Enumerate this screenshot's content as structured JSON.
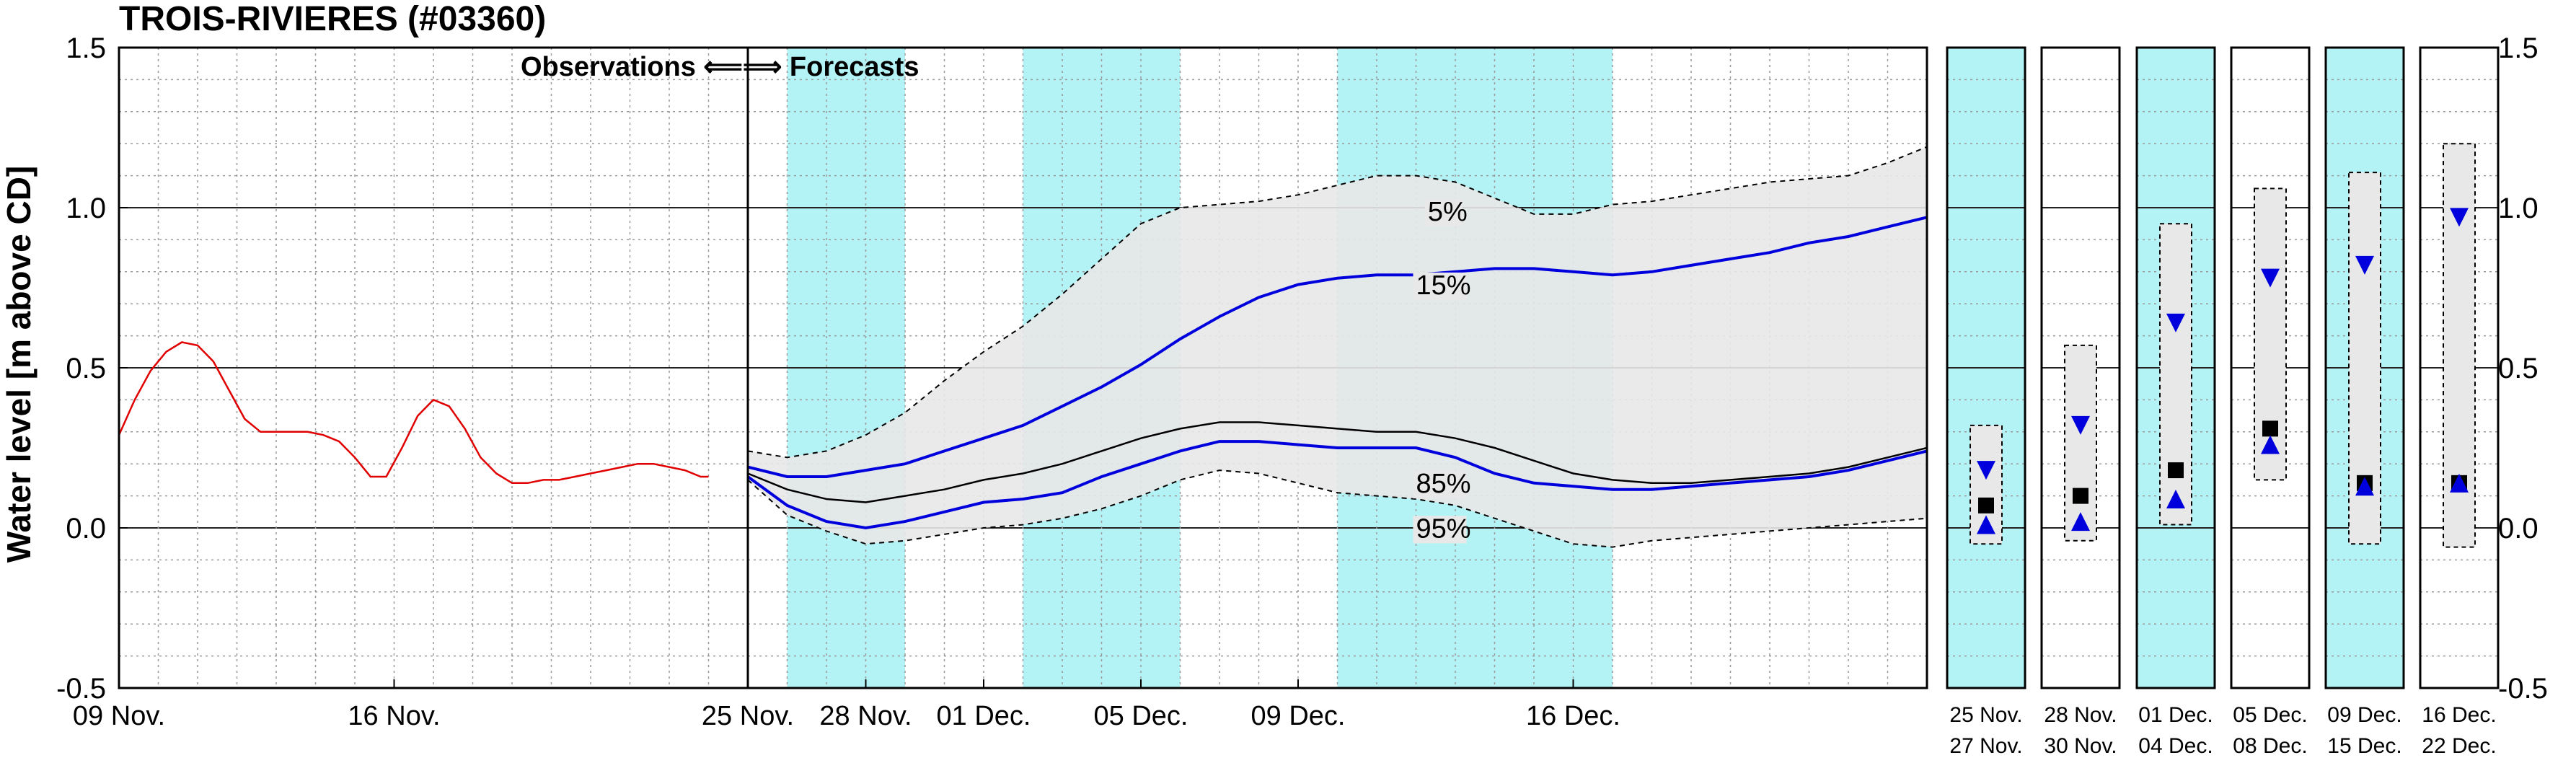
{
  "chart_data": {
    "type": "line",
    "title": "TROIS-RIVIERES (#03360)",
    "ylabel": "Water level [m above CD]",
    "ylim": [
      -0.5,
      1.5
    ],
    "yticks": [
      "-0.5",
      "0.0",
      "0.5",
      "1.0",
      "1.5"
    ],
    "yticks_right": [
      "-0.5",
      "0.0",
      "0.5",
      "1.0",
      "1.5"
    ],
    "x_range_day": [
      0,
      46
    ],
    "x_ticks": [
      {
        "day": 0,
        "label": "09 Nov."
      },
      {
        "day": 7,
        "label": "16 Nov."
      },
      {
        "day": 16,
        "label": "25 Nov."
      },
      {
        "day": 19,
        "label": "28 Nov."
      },
      {
        "day": 22,
        "label": "01 Dec."
      },
      {
        "day": 26,
        "label": "05 Dec."
      },
      {
        "day": 30,
        "label": "09 Dec."
      },
      {
        "day": 37,
        "label": "16 Dec."
      }
    ],
    "observation_forecast_split_day": 16,
    "divider_text": "Observations ⟸⟹ Forecasts",
    "shaded_periods": [
      [
        17,
        20
      ],
      [
        23,
        27
      ],
      [
        31,
        38
      ]
    ],
    "band_label_5": "5%",
    "band_label_15": "15%",
    "band_label_85": "85%",
    "band_label_95": "95%",
    "series_observed": {
      "color": "#e00000",
      "x": [
        0.0,
        0.4,
        0.8,
        1.2,
        1.6,
        2.0,
        2.4,
        2.8,
        3.2,
        3.6,
        4.0,
        4.4,
        4.8,
        5.2,
        5.6,
        6.0,
        6.4,
        6.8,
        7.2,
        7.6,
        8.0,
        8.4,
        8.8,
        9.2,
        9.6,
        10.0,
        10.4,
        10.8,
        11.2,
        11.6,
        12.0,
        12.4,
        12.8,
        13.2,
        13.6,
        14.0,
        14.4,
        14.8,
        15.0
      ],
      "y": [
        0.29,
        0.4,
        0.49,
        0.55,
        0.58,
        0.57,
        0.52,
        0.43,
        0.34,
        0.3,
        0.3,
        0.3,
        0.3,
        0.29,
        0.27,
        0.22,
        0.16,
        0.16,
        0.25,
        0.35,
        0.4,
        0.38,
        0.31,
        0.22,
        0.17,
        0.14,
        0.14,
        0.15,
        0.15,
        0.16,
        0.17,
        0.18,
        0.19,
        0.2,
        0.2,
        0.19,
        0.18,
        0.16,
        0.16
      ]
    },
    "series_forecast_x": [
      16,
      17,
      18,
      19,
      20,
      21,
      22,
      23,
      24,
      25,
      26,
      27,
      28,
      29,
      30,
      31,
      32,
      33,
      34,
      35,
      36,
      37,
      38,
      39,
      40,
      41,
      42,
      43,
      44,
      45,
      46
    ],
    "series_p5": [
      0.24,
      0.22,
      0.24,
      0.29,
      0.36,
      0.46,
      0.55,
      0.63,
      0.73,
      0.84,
      0.95,
      1.0,
      1.01,
      1.02,
      1.04,
      1.07,
      1.1,
      1.1,
      1.08,
      1.03,
      0.98,
      0.98,
      1.01,
      1.02,
      1.04,
      1.06,
      1.08,
      1.09,
      1.1,
      1.14,
      1.19
    ],
    "series_p15": [
      0.19,
      0.16,
      0.16,
      0.18,
      0.2,
      0.24,
      0.28,
      0.32,
      0.38,
      0.44,
      0.51,
      0.59,
      0.66,
      0.72,
      0.76,
      0.78,
      0.79,
      0.79,
      0.8,
      0.81,
      0.81,
      0.8,
      0.79,
      0.8,
      0.82,
      0.84,
      0.86,
      0.89,
      0.91,
      0.94,
      0.97
    ],
    "series_median": [
      0.17,
      0.12,
      0.09,
      0.08,
      0.1,
      0.12,
      0.15,
      0.17,
      0.2,
      0.24,
      0.28,
      0.31,
      0.33,
      0.33,
      0.32,
      0.31,
      0.3,
      0.3,
      0.28,
      0.25,
      0.21,
      0.17,
      0.15,
      0.14,
      0.14,
      0.15,
      0.16,
      0.17,
      0.19,
      0.22,
      0.25
    ],
    "series_p85": [
      0.16,
      0.07,
      0.02,
      0.0,
      0.02,
      0.05,
      0.08,
      0.09,
      0.11,
      0.16,
      0.2,
      0.24,
      0.27,
      0.27,
      0.26,
      0.25,
      0.25,
      0.25,
      0.22,
      0.17,
      0.14,
      0.13,
      0.12,
      0.12,
      0.13,
      0.14,
      0.15,
      0.16,
      0.18,
      0.21,
      0.24
    ],
    "series_p95": [
      0.15,
      0.04,
      -0.01,
      -0.05,
      -0.04,
      -0.02,
      0.0,
      0.01,
      0.03,
      0.06,
      0.1,
      0.15,
      0.18,
      0.17,
      0.14,
      0.11,
      0.1,
      0.09,
      0.07,
      0.03,
      -0.01,
      -0.05,
      -0.06,
      -0.04,
      -0.03,
      -0.02,
      -0.01,
      0.0,
      0.01,
      0.02,
      0.03
    ],
    "colors": {
      "observed": "#e00000",
      "forecast_percentile": "#0000dd",
      "median": "#000000",
      "band_fill": "#e8e8e8",
      "shade": "#b3f3f6",
      "grid": "#999999"
    },
    "panels": [
      {
        "label_top": "25 Nov.",
        "label_bottom": "27 Nov.",
        "shaded": true,
        "box": [
          -0.05,
          0.32
        ],
        "down_triangle": 0.18,
        "square": 0.07,
        "up_triangle": 0.01
      },
      {
        "label_top": "28 Nov.",
        "label_bottom": "30 Nov.",
        "shaded": false,
        "box": [
          -0.04,
          0.57
        ],
        "down_triangle": 0.32,
        "square": 0.1,
        "up_triangle": 0.02
      },
      {
        "label_top": "01 Dec.",
        "label_bottom": "04 Dec.",
        "shaded": true,
        "box": [
          0.01,
          0.95
        ],
        "down_triangle": 0.64,
        "square": 0.18,
        "up_triangle": 0.09
      },
      {
        "label_top": "05 Dec.",
        "label_bottom": "08 Dec.",
        "shaded": false,
        "box": [
          0.15,
          1.06
        ],
        "down_triangle": 0.78,
        "square": 0.31,
        "up_triangle": 0.26
      },
      {
        "label_top": "09 Dec.",
        "label_bottom": "15 Dec.",
        "shaded": true,
        "box": [
          -0.05,
          1.11
        ],
        "down_triangle": 0.82,
        "square": 0.14,
        "up_triangle": 0.13
      },
      {
        "label_top": "16 Dec.",
        "label_bottom": "22 Dec.",
        "shaded": false,
        "box": [
          -0.06,
          1.2
        ],
        "down_triangle": 0.97,
        "square": 0.14,
        "up_triangle": 0.14
      }
    ]
  }
}
